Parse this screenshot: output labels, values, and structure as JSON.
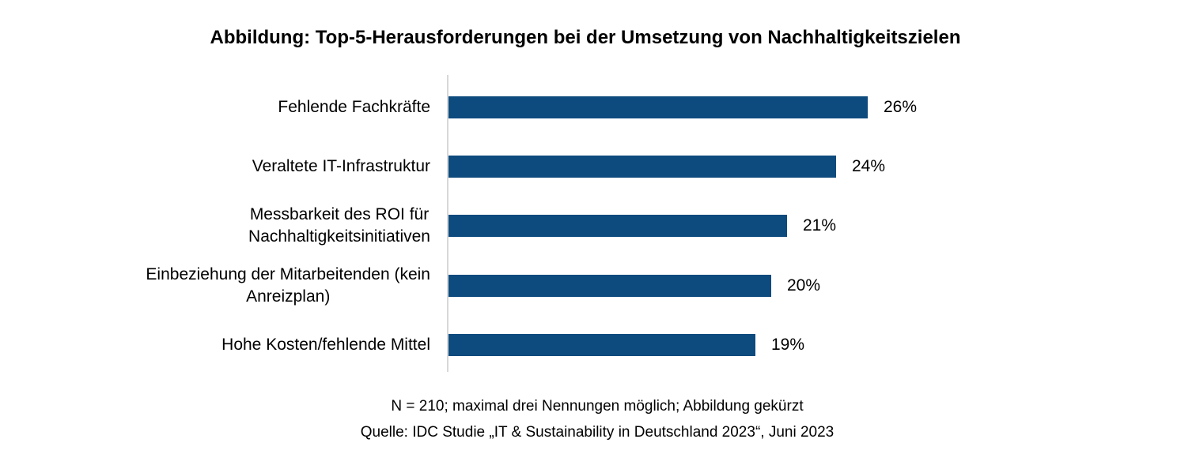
{
  "chart_data": {
    "type": "bar",
    "orientation": "horizontal",
    "title": "Abbildung: Top-5-Herausforderungen bei der Umsetzung von Nachhaltigkeitszielen",
    "categories": [
      "Fehlende Fachkräfte",
      "Veraltete IT-Infrastruktur",
      "Messbarkeit des ROI für\nNachhaltigkeitsinitiativen",
      "Einbeziehung der Mitarbeitenden (kein\nAnreizplan)",
      "Hohe Kosten/fehlende Mittel"
    ],
    "values": [
      26,
      24,
      21,
      20,
      19
    ],
    "value_labels": [
      "26%",
      "24%",
      "21%",
      "20%",
      "19%"
    ],
    "unit": "%",
    "xlim": [
      0,
      30
    ],
    "grid": false,
    "legend": false,
    "bar_color": "#0d4a7e",
    "axis_color": "#d8d8d8",
    "text_color": "#000000"
  },
  "footnotes": {
    "note": "N = 210; maximal drei Nennungen möglich; Abbildung gekürzt",
    "source": "Quelle: IDC Studie „IT & Sustainability in Deutschland 2023“, Juni 2023"
  }
}
